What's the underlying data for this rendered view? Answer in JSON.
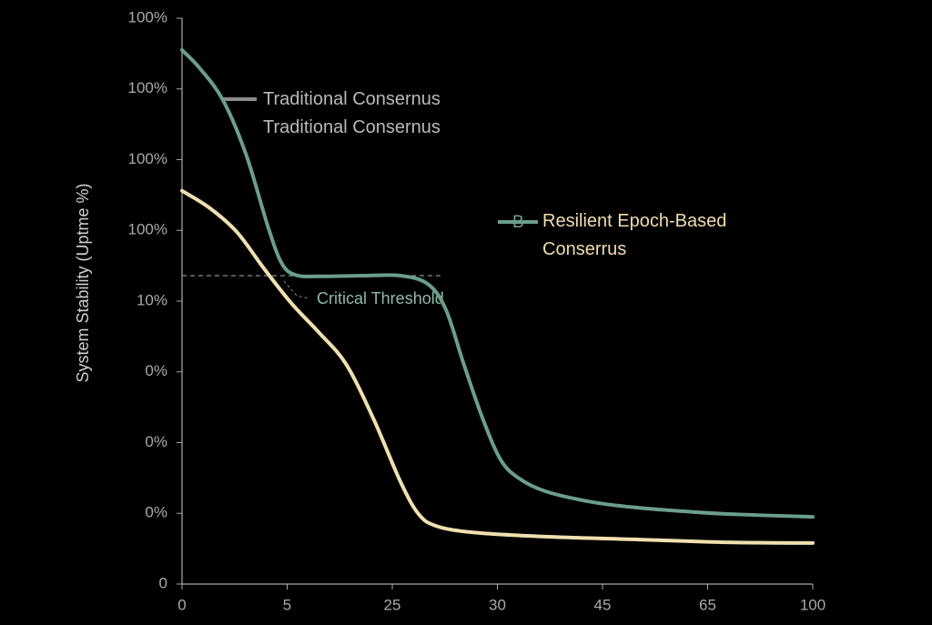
{
  "chart_data": {
    "type": "line",
    "y_label": "System Stability (Uptme %)",
    "xlim": [
      0,
      6
    ],
    "ylim": [
      0,
      8
    ],
    "xticks": [
      {
        "value": 0,
        "label": "0"
      },
      {
        "value": 1,
        "label": "5"
      },
      {
        "value": 2,
        "label": "25"
      },
      {
        "value": 3,
        "label": "30"
      },
      {
        "value": 4,
        "label": "45"
      },
      {
        "value": 5,
        "label": "65"
      },
      {
        "value": 6,
        "label": "100"
      }
    ],
    "yticks": [
      {
        "value": 0,
        "label": "0"
      },
      {
        "value": 1,
        "label": "0%"
      },
      {
        "value": 2,
        "label": "0%"
      },
      {
        "value": 3,
        "label": "0%"
      },
      {
        "value": 4,
        "label": "10%"
      },
      {
        "value": 5,
        "label": "100%"
      },
      {
        "value": 6,
        "label": "100%"
      },
      {
        "value": 7,
        "label": "100%"
      },
      {
        "value": 8,
        "label": "100%"
      }
    ],
    "series": [
      {
        "name": "Resilient Epoch-Based Conserrus",
        "color": "#6b9e8b",
        "label_color": "#efdcae",
        "x": [
          0,
          0.17,
          0.39,
          0.61,
          0.82,
          0.95,
          1.08,
          1.3,
          1.73,
          2.08,
          2.34,
          2.51,
          2.68,
          2.86,
          3.03,
          3.2,
          3.46,
          3.9,
          4.33,
          4.76,
          5.19,
          6
        ],
        "values": [
          7.55,
          7.29,
          6.84,
          6.07,
          5.04,
          4.53,
          4.37,
          4.35,
          4.36,
          4.36,
          4.24,
          3.88,
          3.11,
          2.34,
          1.76,
          1.5,
          1.31,
          1.16,
          1.08,
          1.03,
          0.99,
          0.95
        ]
      },
      {
        "color": "#efe0b0",
        "x": [
          0,
          0.26,
          0.52,
          0.78,
          1.04,
          1.3,
          1.56,
          1.82,
          2.08,
          2.25,
          2.42,
          2.77,
          3.46,
          4.33,
          5.19,
          6
        ],
        "values": [
          5.56,
          5.32,
          4.98,
          4.46,
          3.97,
          3.56,
          3.11,
          2.34,
          1.44,
          0.99,
          0.82,
          0.73,
          0.67,
          0.63,
          0.59,
          0.58
        ]
      }
    ],
    "legend_labels": [
      "Traditional Consernus",
      "Traditional Consernus"
    ],
    "legend_color": "#8c8c8c",
    "legend_marker": "B",
    "threshold": {
      "label": "Critical Threshold",
      "value": 4.36,
      "x_end": 2.49,
      "color": "#8a8a8a",
      "label_color": "#8fb9a8"
    }
  }
}
